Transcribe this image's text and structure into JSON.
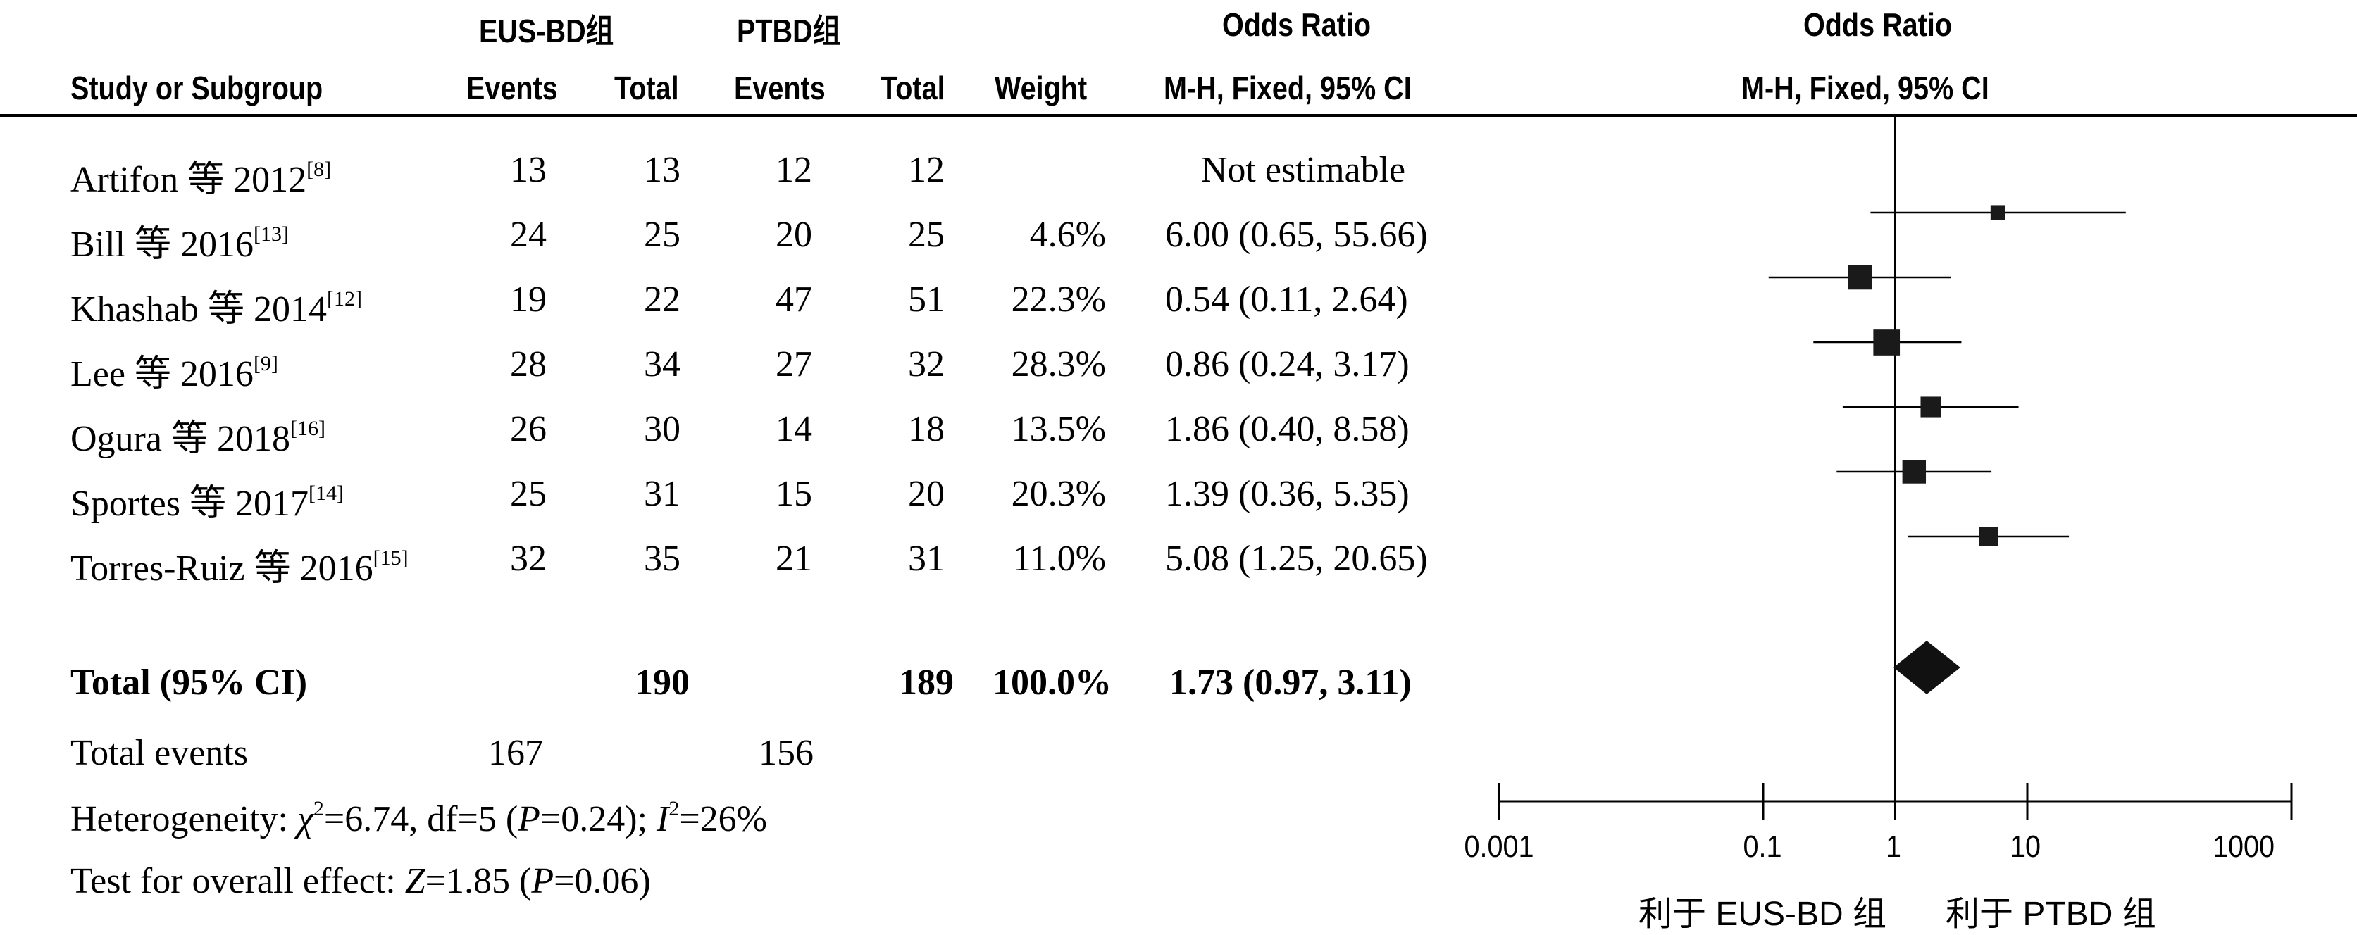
{
  "header": {
    "group1": "EUS-BD组",
    "group2": "PTBD组",
    "or_title": "Odds Ratio",
    "plot_title": "Odds Ratio",
    "col_study": "Study or Subgroup",
    "col_events1": "Events",
    "col_total1": "Total",
    "col_events2": "Events",
    "col_total2": "Total",
    "col_weight": "Weight",
    "col_or": "M-H, Fixed, 95% CI",
    "plot_subtitle": "M-H, Fixed, 95% CI"
  },
  "rows": [
    {
      "study": "Artifon 等 2012",
      "ref": "[8]",
      "e1": "13",
      "t1": "13",
      "e2": "12",
      "t2": "12",
      "weight": "",
      "or_text": "Not estimable"
    },
    {
      "study": "Bill 等 2016",
      "ref": "[13]",
      "e1": "24",
      "t1": "25",
      "e2": "20",
      "t2": "25",
      "weight": "4.6%",
      "or_text": "6.00 (0.65, 55.66)"
    },
    {
      "study": "Khashab 等 2014",
      "ref": "[12]",
      "e1": "19",
      "t1": "22",
      "e2": "47",
      "t2": "51",
      "weight": "22.3%",
      "or_text": "0.54 (0.11, 2.64)"
    },
    {
      "study": "Lee 等 2016",
      "ref": "[9]",
      "e1": "28",
      "t1": "34",
      "e2": "27",
      "t2": "32",
      "weight": "28.3%",
      "or_text": "0.86 (0.24, 3.17)"
    },
    {
      "study": "Ogura 等 2018",
      "ref": "[16]",
      "e1": "26",
      "t1": "30",
      "e2": "14",
      "t2": "18",
      "weight": "13.5%",
      "or_text": "1.86 (0.40, 8.58)"
    },
    {
      "study": "Sportes 等 2017",
      "ref": "[14]",
      "e1": "25",
      "t1": "31",
      "e2": "15",
      "t2": "20",
      "weight": "20.3%",
      "or_text": "1.39 (0.36, 5.35)"
    },
    {
      "study": "Torres-Ruiz 等 2016",
      "ref": "[15]",
      "e1": "32",
      "t1": "35",
      "e2": "21",
      "t2": "31",
      "weight": "11.0%",
      "or_text": "5.08 (1.25, 20.65)"
    }
  ],
  "total": {
    "label": "Total (95% CI)",
    "t1": "190",
    "t2": "189",
    "weight": "100.0%",
    "or_text": "1.73 (0.97, 3.11)"
  },
  "events": {
    "label": "Total events",
    "e1": "167",
    "e2": "156"
  },
  "heterogeneity": {
    "prefix": "Heterogeneity: ",
    "chi_symbol": "χ",
    "chi_sup": "2",
    "chi_rest": "=6.74, df=5 (",
    "p_symbol": "P",
    "p_rest": "=0.24); ",
    "i_symbol": "I",
    "i_sup": "2",
    "i_rest": "=26%"
  },
  "overall": {
    "prefix": "Test for overall effect: ",
    "z_symbol": "Z",
    "z_rest": "=1.85 (",
    "p_symbol": "P",
    "p_rest": "=0.06)"
  },
  "chart_data": {
    "type": "forest",
    "scale": "log",
    "xlim": [
      0.001,
      1000
    ],
    "ticks": [
      0.001,
      0.1,
      1,
      10,
      1000
    ],
    "tick_labels": [
      "0.001",
      "0.1",
      "1",
      "10",
      "1000"
    ],
    "favours_left": "利于 EUS-BD 组",
    "favours_right": "利于 PTBD 组",
    "studies": [
      {
        "or": null,
        "lo": null,
        "hi": null,
        "weight": 0
      },
      {
        "or": 6.0,
        "lo": 0.65,
        "hi": 55.66,
        "weight": 4.6
      },
      {
        "or": 0.54,
        "lo": 0.11,
        "hi": 2.64,
        "weight": 22.3
      },
      {
        "or": 0.86,
        "lo": 0.24,
        "hi": 3.17,
        "weight": 28.3
      },
      {
        "or": 1.86,
        "lo": 0.4,
        "hi": 8.58,
        "weight": 13.5
      },
      {
        "or": 1.39,
        "lo": 0.36,
        "hi": 5.35,
        "weight": 20.3
      },
      {
        "or": 5.08,
        "lo": 1.25,
        "hi": 20.65,
        "weight": 11.0
      }
    ],
    "pooled": {
      "or": 1.73,
      "lo": 0.97,
      "hi": 3.11
    }
  }
}
